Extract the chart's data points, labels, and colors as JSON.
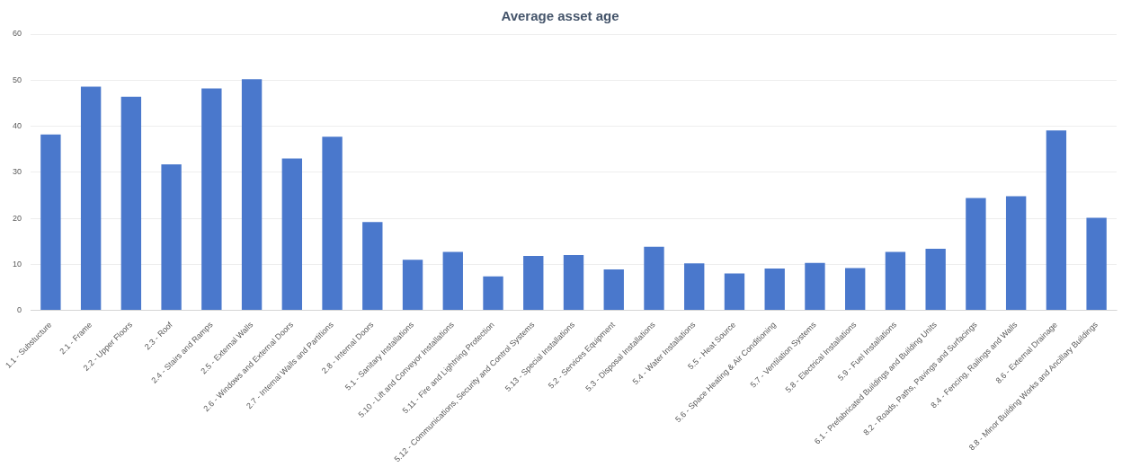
{
  "chart_data": {
    "type": "bar",
    "title": "Average asset age",
    "categories": [
      "1.1 - Substucture",
      "2.1 - Frame",
      "2.2 - Upper Floors",
      "2.3 - Roof",
      "2.4 - Stairs and Ramps",
      "2.5 - External Walls",
      "2.6 - Windows and External Doors",
      "2.7 - Internal Walls and Partitions",
      "2.8 - Internal Doors",
      "5.1 - Sanitary Installations",
      "5.10 - Lift and Conveyor Installations",
      "5.11 - Fire and Lightning Protection",
      "5.12 - Communications, Security and Control Systems",
      "5.13 - Special Installations",
      "5.2 - Services Equipment",
      "5.3 - Disposal Installations",
      "5.4 - Water Installations",
      "5.5 - Heat Source",
      "5.6 - Space Heating & Air Conditioning",
      "5.7 - Ventilation Systems",
      "5.8 - Electrical Installations",
      "5.9 - Fuel Installations",
      "6.1 - Prefabricated Buildings and Building Units",
      "8.2 - Roads, Paths, Pavings and Surfacings",
      "8.4 - Fencing, Railings and Walls",
      "8.6 - External Drainage",
      "8.8 - Minor Building Works and Ancillary Buildings"
    ],
    "values": [
      38.2,
      48.6,
      46.4,
      31.7,
      48.2,
      50.2,
      33,
      37.7,
      19.2,
      11,
      12.7,
      7.4,
      11.8,
      12,
      8.9,
      13.8,
      10.2,
      8,
      9.1,
      10.3,
      9.2,
      12.7,
      13.4,
      24.4,
      24.8,
      39.1,
      20.1
    ],
    "color": "#4a78cc",
    "ylim": [
      0,
      60
    ],
    "yticks": [
      0,
      10,
      20,
      30,
      40,
      50,
      60
    ],
    "grid": "y"
  }
}
